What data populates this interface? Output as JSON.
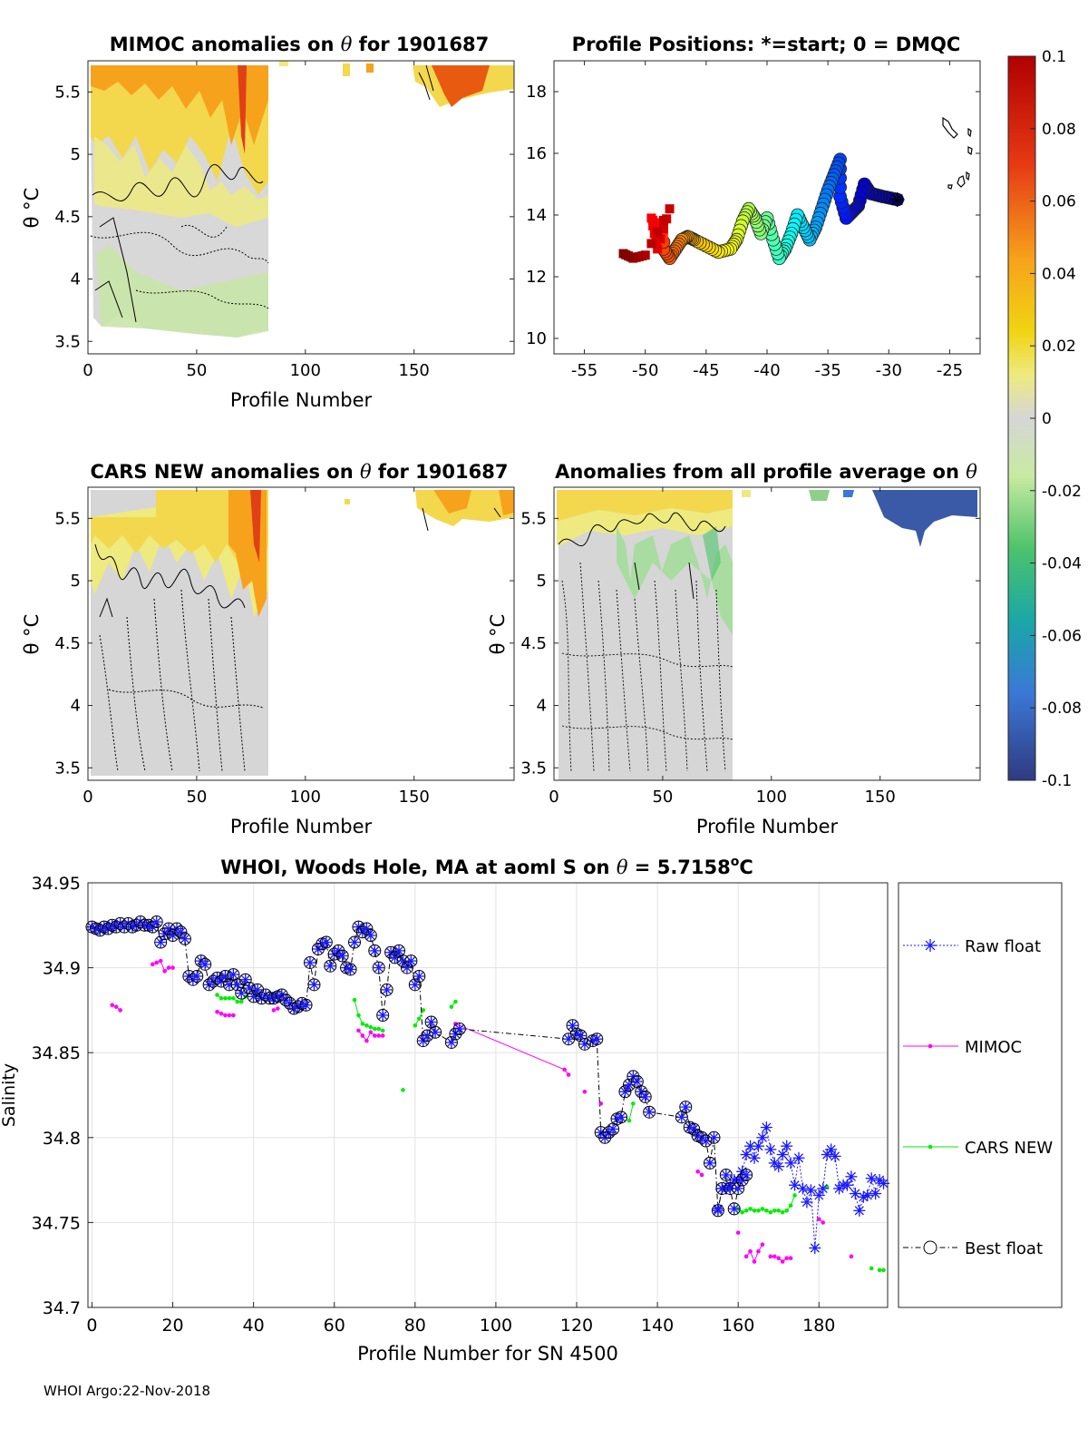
{
  "footer": "WHOI Argo:22-Nov-2018",
  "colors": {
    "raw": "#1a1aff",
    "mimoc": "#ff00ff",
    "cars": "#00ee00",
    "best": "#000000",
    "fill_neutral": "#d4d4d4"
  },
  "chart_data": [
    {
      "id": "mimoc",
      "type": "heatmap",
      "title_pre": "MIMOC anomalies on ",
      "title_post": "  for 1901687",
      "xlabel": "Profile Number",
      "ylabel": "θ °C",
      "xlim": [
        0,
        196
      ],
      "ylim": [
        3.4,
        5.75
      ],
      "xticks": [
        0,
        50,
        100,
        150
      ],
      "yticks": [
        3.5,
        4,
        4.5,
        5,
        5.5
      ]
    },
    {
      "id": "positions",
      "type": "scatter",
      "title": "Profile Positions: *=start; 0 = DMQC",
      "xlim": [
        -57.5,
        -22.5
      ],
      "ylim": [
        9.5,
        19
      ],
      "xticks": [
        -55,
        -50,
        -45,
        -40,
        -35,
        -30,
        -25
      ],
      "yticks": [
        10,
        12,
        14,
        16,
        18
      ],
      "start": [
        -29.3,
        14.5
      ]
    },
    {
      "id": "cars",
      "type": "heatmap",
      "title_pre": "CARS NEW anomalies on ",
      "title_post": " for 1901687",
      "xlabel": "Profile Number",
      "ylabel": "θ °C",
      "xlim": [
        0,
        196
      ],
      "ylim": [
        3.4,
        5.75
      ],
      "xticks": [
        0,
        50,
        100,
        150
      ],
      "yticks": [
        3.5,
        4,
        4.5,
        5,
        5.5
      ]
    },
    {
      "id": "avg",
      "type": "heatmap",
      "title_pre": "Anomalies from all profile average on ",
      "title_post": "",
      "xlabel": "Profile Number",
      "ylabel": "θ °C",
      "xlim": [
        0,
        196
      ],
      "ylim": [
        3.4,
        5.75
      ],
      "xticks": [
        0,
        50,
        100,
        150
      ],
      "yticks": [
        3.5,
        4,
        4.5,
        5,
        5.5
      ]
    },
    {
      "id": "colorbar",
      "type": "colorbar",
      "lim": [
        -0.1,
        0.1
      ],
      "ticks": [
        "0.1",
        "0.08",
        "0.06",
        "0.04",
        "0.02",
        "0",
        "-0.02",
        "-0.04",
        "-0.06",
        "-0.08",
        "-0.1"
      ]
    },
    {
      "id": "salinity",
      "type": "line",
      "title_pre": "WHOI, Woods Hole, MA at aoml S on ",
      "title_mid": " = 5.7158",
      "title_sup": "o",
      "title_end": "C",
      "xlabel": "Profile Number for SN 4500",
      "ylabel": "Salinity",
      "xlim": [
        -1,
        197
      ],
      "ylim": [
        34.7,
        34.95
      ],
      "xticks": [
        0,
        20,
        40,
        60,
        80,
        100,
        120,
        140,
        160,
        180
      ],
      "yticks": [
        "34.7",
        "34.75",
        "34.8",
        "34.85",
        "34.9",
        "34.95"
      ],
      "legend": [
        "Raw float",
        "MIMOC",
        "CARS NEW",
        "Best float"
      ],
      "series": [
        {
          "name": "Raw float",
          "x": [
            155,
            156,
            157,
            158,
            159,
            160,
            161,
            162,
            163,
            164,
            165,
            166,
            167,
            168,
            169,
            170,
            171,
            172,
            173,
            174,
            175,
            176,
            177,
            178,
            179,
            180,
            181,
            182,
            183,
            184,
            185,
            186,
            187,
            188,
            189,
            190,
            191,
            192,
            193,
            194,
            195,
            196
          ],
          "y": [
            34.758,
            34.77,
            34.77,
            34.772,
            34.775,
            34.775,
            34.78,
            34.79,
            34.795,
            34.788,
            34.795,
            34.8,
            34.806,
            34.793,
            34.785,
            34.783,
            34.79,
            34.795,
            34.785,
            34.772,
            34.788,
            34.77,
            34.762,
            34.769,
            34.735,
            34.766,
            34.77,
            34.79,
            34.793,
            34.789,
            34.77,
            34.772,
            34.772,
            34.777,
            34.767,
            34.757,
            34.765,
            34.766,
            34.776,
            34.767,
            34.775,
            34.773
          ]
        },
        {
          "name": "MIMOC",
          "segments": [
            {
              "x": [
                5,
                6,
                7
              ],
              "y": [
                34.878,
                34.877,
                34.875
              ]
            },
            {
              "x": [
                15,
                16,
                17,
                18,
                19,
                20
              ],
              "y": [
                34.902,
                34.903,
                34.904,
                34.898,
                34.9,
                34.9
              ]
            },
            {
              "x": [
                31,
                32,
                33,
                34,
                35
              ],
              "y": [
                34.874,
                34.873,
                34.872,
                34.872,
                34.872
              ]
            },
            {
              "x": [
                45,
                46
              ],
              "y": [
                34.875,
                34.876
              ]
            },
            {
              "x": [
                66,
                67,
                68,
                69,
                70,
                71,
                72
              ],
              "y": [
                34.863,
                34.86,
                34.857,
                34.862,
                34.86,
                34.86,
                34.86
              ]
            },
            {
              "x": [
                90,
                117,
                118
              ],
              "y": [
                34.867,
                34.84,
                34.837
              ]
            },
            {
              "x": [
                122
              ],
              "y": [
                34.827
              ]
            },
            {
              "x": [
                126
              ],
              "y": [
                34.82
              ]
            },
            {
              "x": [
                150,
                151
              ],
              "y": [
                34.78,
                34.778
              ]
            },
            {
              "x": [
                160
              ],
              "y": [
                34.744
              ]
            },
            {
              "x": [
                162,
                163,
                164,
                165,
                166
              ],
              "y": [
                34.73,
                34.733,
                34.727,
                34.733,
                34.737
              ]
            },
            {
              "x": [
                168,
                169,
                170,
                171,
                172,
                173
              ],
              "y": [
                34.73,
                34.73,
                34.729,
                34.727,
                34.729,
                34.729
              ]
            },
            {
              "x": [
                180,
                181
              ],
              "y": [
                34.752,
                34.75
              ]
            },
            {
              "x": [
                188
              ],
              "y": [
                34.73
              ]
            }
          ]
        },
        {
          "name": "CARS NEW",
          "segments": [
            {
              "x": [
                31,
                32,
                33,
                34,
                35,
                36,
                37,
                38
              ],
              "y": [
                34.884,
                34.882,
                34.882,
                34.882,
                34.882,
                34.88,
                34.88,
                34.883
              ]
            },
            {
              "x": [
                65,
                66,
                67,
                68,
                69,
                70,
                71,
                72
              ],
              "y": [
                34.881,
                34.872,
                34.867,
                34.866,
                34.865,
                34.864,
                34.864,
                34.863
              ]
            },
            {
              "x": [
                77
              ],
              "y": [
                34.828
              ]
            },
            {
              "x": [
                80,
                81,
                82
              ],
              "y": [
                34.866,
                34.87,
                34.875
              ]
            },
            {
              "x": [
                89,
                90
              ],
              "y": [
                34.877,
                34.88
              ]
            },
            {
              "x": [
                133,
                134
              ],
              "y": [
                34.81,
                34.82
              ]
            },
            {
              "x": [
                160,
                161,
                162,
                163,
                164,
                165,
                166,
                167,
                168,
                169,
                170,
                171,
                172,
                173,
                174
              ],
              "y": [
                34.758,
                34.756,
                34.757,
                34.758,
                34.757,
                34.757,
                34.758,
                34.757,
                34.756,
                34.757,
                34.757,
                34.756,
                34.757,
                34.76,
                34.766
              ]
            },
            {
              "x": [
                182
              ],
              "y": [
                34.771
              ]
            },
            {
              "x": [
                193
              ],
              "y": [
                34.723
              ]
            },
            {
              "x": [
                195,
                196
              ],
              "y": [
                34.722,
                34.722
              ]
            }
          ]
        },
        {
          "name": "Best float",
          "x": [
            0,
            1,
            2,
            3,
            4,
            5,
            6,
            7,
            8,
            9,
            10,
            11,
            12,
            13,
            14,
            15,
            16,
            17,
            18,
            19,
            20,
            21,
            22,
            23,
            24,
            25,
            26,
            27,
            28,
            29,
            30,
            31,
            32,
            33,
            34,
            35,
            36,
            37,
            38,
            39,
            40,
            41,
            42,
            43,
            44,
            45,
            46,
            47,
            48,
            49,
            50,
            51,
            52,
            53,
            54,
            55,
            56,
            57,
            58,
            59,
            60,
            61,
            62,
            63,
            64,
            65,
            66,
            67,
            68,
            69,
            70,
            71,
            72,
            73,
            74,
            75,
            76,
            77,
            78,
            79,
            80,
            81,
            82,
            83,
            84,
            85,
            89,
            90,
            91,
            118,
            119,
            120,
            121,
            122,
            124,
            125,
            126,
            127,
            128,
            129,
            130,
            131,
            132,
            133,
            134,
            135,
            136,
            137,
            138,
            146,
            147,
            148,
            149,
            150,
            151,
            152,
            153,
            154,
            155,
            156,
            157,
            158,
            159,
            160,
            161,
            162
          ],
          "y": [
            34.924,
            34.923,
            34.922,
            34.924,
            34.923,
            34.925,
            34.924,
            34.926,
            34.924,
            34.926,
            34.924,
            34.925,
            34.927,
            34.925,
            34.925,
            34.924,
            34.927,
            34.915,
            34.92,
            34.923,
            34.919,
            34.923,
            34.921,
            34.917,
            34.895,
            34.893,
            34.895,
            34.904,
            34.902,
            34.89,
            34.892,
            34.894,
            34.892,
            34.895,
            34.89,
            34.896,
            34.89,
            34.885,
            34.893,
            34.888,
            34.883,
            34.887,
            34.882,
            34.884,
            34.882,
            34.882,
            34.883,
            34.884,
            34.881,
            34.879,
            34.876,
            34.877,
            34.879,
            34.878,
            34.903,
            34.89,
            34.911,
            34.914,
            34.915,
            34.901,
            34.908,
            34.91,
            34.907,
            34.9,
            34.899,
            34.915,
            34.924,
            34.921,
            34.923,
            34.919,
            34.91,
            34.9,
            34.872,
            34.887,
            34.909,
            34.906,
            34.91,
            34.904,
            34.9,
            34.904,
            34.89,
            34.895,
            34.857,
            34.86,
            34.868,
            34.862,
            34.856,
            34.861,
            34.864,
            34.858,
            34.866,
            34.861,
            34.86,
            34.855,
            34.857,
            34.858,
            34.803,
            34.8,
            34.803,
            34.805,
            34.811,
            34.812,
            34.827,
            34.831,
            34.836,
            34.833,
            34.827,
            34.824,
            34.815,
            34.812,
            34.818,
            34.806,
            34.805,
            34.801,
            34.8,
            34.798,
            34.785,
            34.8,
            34.757,
            34.77,
            34.778,
            34.77,
            34.758,
            34.77,
            34.775,
            34.778
          ]
        }
      ]
    }
  ]
}
